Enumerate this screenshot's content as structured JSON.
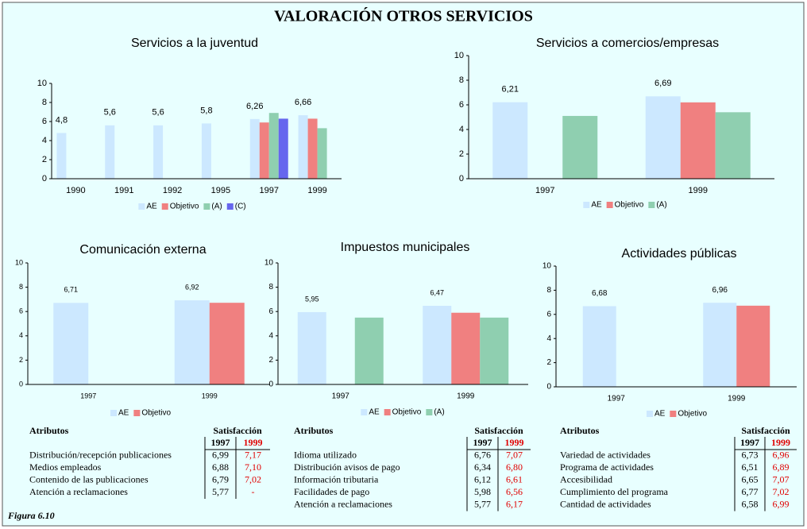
{
  "title": "VALORACIÓN OTROS SERVICIOS",
  "figure_label": "Figura 6.10",
  "chart_data": [
    {
      "type": "bar",
      "title": "Servicios a la juventud",
      "categories": [
        "1990",
        "1991",
        "1992",
        "1995",
        "1997",
        "1999"
      ],
      "series": [
        {
          "name": "AE",
          "color": "#cce8ff",
          "values": [
            4.8,
            5.6,
            5.6,
            5.8,
            6.26,
            6.66
          ],
          "value_labels": [
            "4,8",
            "5,6",
            "5,6",
            "5,8",
            "6,26",
            "6,66"
          ]
        },
        {
          "name": "Objetivo",
          "color": "#f08080",
          "values": [
            null,
            null,
            null,
            null,
            5.9,
            6.3
          ]
        },
        {
          "name": "(A)",
          "color": "#8fcfb0",
          "values": [
            null,
            null,
            null,
            null,
            6.9,
            5.3
          ]
        },
        {
          "name": "(C)",
          "color": "#6666ee",
          "values": [
            null,
            null,
            null,
            null,
            6.3,
            null
          ]
        }
      ],
      "ylim": [
        0,
        10
      ],
      "yticks": [
        0,
        2,
        4,
        6,
        8,
        10
      ]
    },
    {
      "type": "bar",
      "title": "Servicios a comercios/empresas",
      "categories": [
        "1997",
        "1999"
      ],
      "series": [
        {
          "name": "AE",
          "color": "#cce8ff",
          "values": [
            6.21,
            6.69
          ],
          "value_labels": [
            "6,21",
            "6,69"
          ]
        },
        {
          "name": "Objetivo",
          "color": "#f08080",
          "values": [
            null,
            6.2
          ]
        },
        {
          "name": "(A)",
          "color": "#8fcfb0",
          "values": [
            5.1,
            5.4
          ]
        }
      ],
      "ylim": [
        0,
        10
      ],
      "yticks": [
        0,
        2,
        4,
        6,
        8,
        10
      ]
    },
    {
      "type": "bar",
      "title": "Comunicación externa",
      "categories": [
        "1997",
        "1999"
      ],
      "series": [
        {
          "name": "AE",
          "color": "#cce8ff",
          "values": [
            6.71,
            6.92
          ],
          "value_labels": [
            "6,71",
            "6,92"
          ]
        },
        {
          "name": "Objetivo",
          "color": "#f08080",
          "values": [
            null,
            6.72
          ]
        }
      ],
      "ylim": [
        0,
        10
      ],
      "yticks": [
        0,
        2,
        4,
        6,
        8,
        10
      ]
    },
    {
      "type": "bar",
      "title": "Impuestos municipales",
      "categories": [
        "1997",
        "1999"
      ],
      "series": [
        {
          "name": "AE",
          "color": "#cce8ff",
          "values": [
            5.95,
            6.47
          ],
          "value_labels": [
            "5,95",
            "6,47"
          ]
        },
        {
          "name": "Objetivo",
          "color": "#f08080",
          "values": [
            null,
            5.9
          ]
        },
        {
          "name": "(A)",
          "color": "#8fcfb0",
          "values": [
            5.5,
            5.5
          ]
        }
      ],
      "ylim": [
        0,
        10
      ],
      "yticks": [
        0,
        2,
        4,
        6,
        8,
        10
      ]
    },
    {
      "type": "bar",
      "title": "Actividades públicas",
      "categories": [
        "1997",
        "1999"
      ],
      "series": [
        {
          "name": "AE",
          "color": "#cce8ff",
          "values": [
            6.68,
            6.96
          ],
          "value_labels": [
            "6,68",
            "6,96"
          ]
        },
        {
          "name": "Objetivo",
          "color": "#f08080",
          "values": [
            null,
            6.72
          ]
        }
      ],
      "ylim": [
        0,
        10
      ],
      "yticks": [
        0,
        2,
        4,
        6,
        8,
        10
      ]
    }
  ],
  "tables": [
    {
      "columns": [
        "Atributos",
        "Satisfacción"
      ],
      "years": [
        "1997",
        "1999"
      ],
      "rows": [
        [
          "Distribución/recepción publicaciones",
          "6,99",
          "7,17"
        ],
        [
          "Medios empleados",
          "6,88",
          "7,10"
        ],
        [
          "Contenido de las publicaciones",
          "6,79",
          "7,02"
        ],
        [
          "Atención a reclamaciones",
          "5,77",
          "-"
        ]
      ]
    },
    {
      "columns": [
        "Atributos",
        "Satisfacción"
      ],
      "years": [
        "1997",
        "1999"
      ],
      "rows": [
        [
          "Idioma utilizado",
          "6,76",
          "7,07"
        ],
        [
          "Distribución avisos de pago",
          "6,34",
          "6,80"
        ],
        [
          "Información tributaria",
          "6,12",
          "6,61"
        ],
        [
          "Facilidades de pago",
          "5,98",
          "6,56"
        ],
        [
          "Atención a reclamaciones",
          "5,77",
          "6,17"
        ]
      ]
    },
    {
      "columns": [
        "Atributos",
        "Satisfacción"
      ],
      "years": [
        "1997",
        "1999"
      ],
      "rows": [
        [
          "Variedad de actividades",
          "6,73",
          "6,96"
        ],
        [
          "Programa de actividades",
          "6,51",
          "6,89"
        ],
        [
          "Accesibilidad",
          "6,65",
          "7,07"
        ],
        [
          "Cumplimiento del programa",
          "6,77",
          "7,02"
        ],
        [
          "Cantidad de actividades",
          "6,58",
          "6,99"
        ]
      ]
    }
  ]
}
